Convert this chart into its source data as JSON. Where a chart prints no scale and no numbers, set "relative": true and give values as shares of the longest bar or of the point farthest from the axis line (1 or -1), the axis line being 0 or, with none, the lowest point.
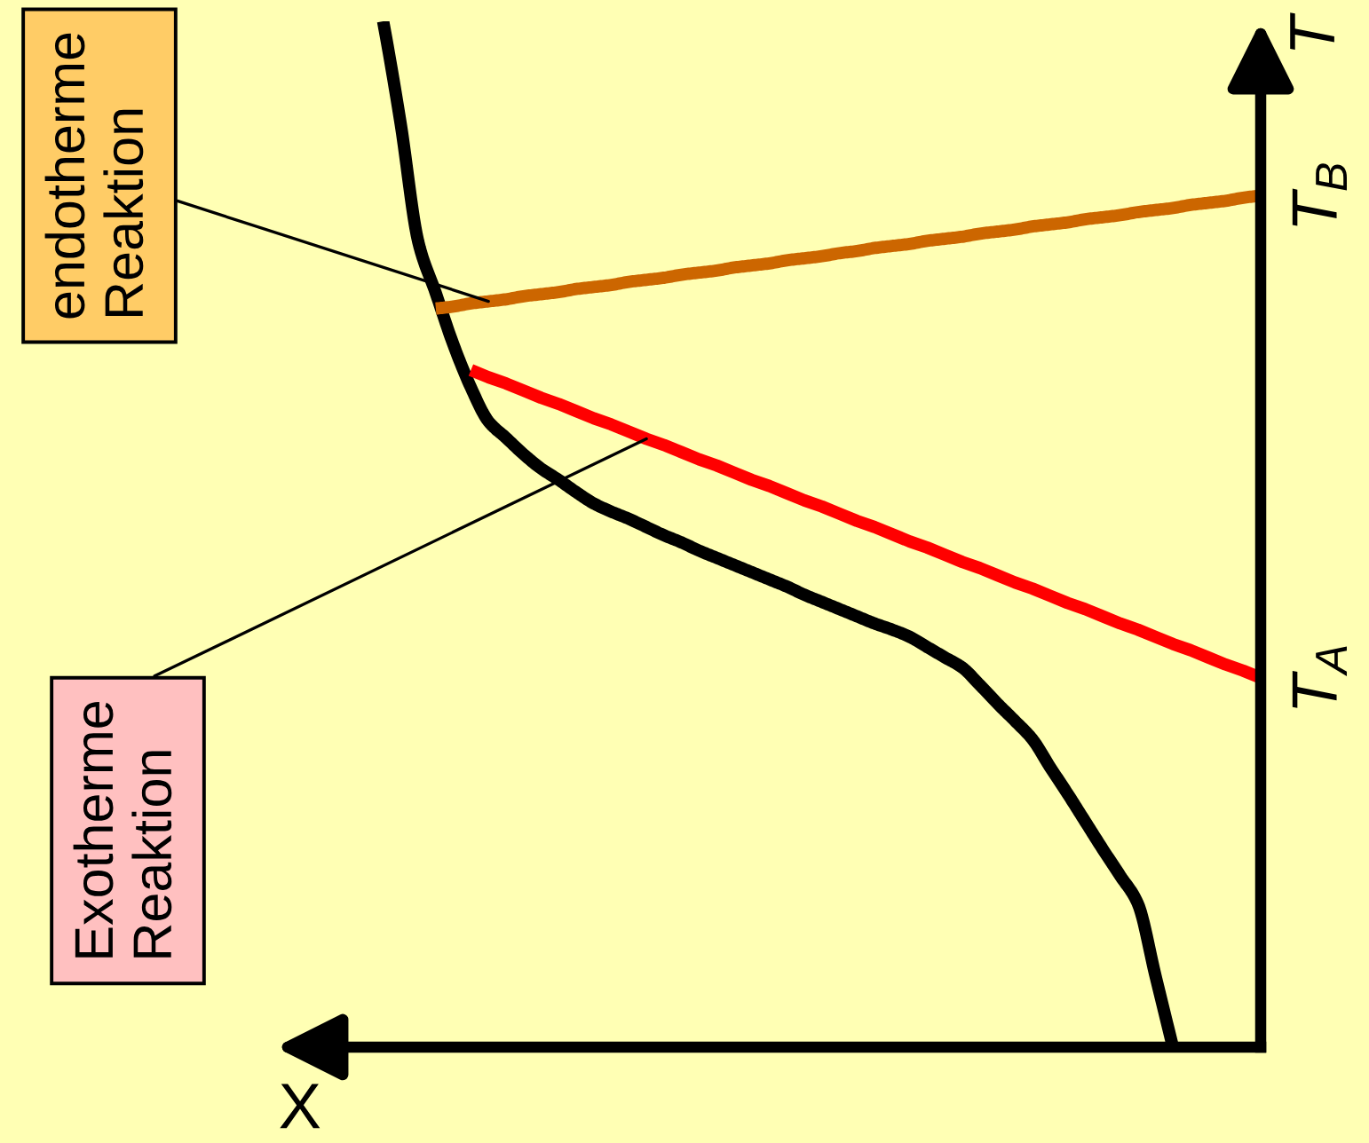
{
  "chart_data": {
    "type": "line",
    "relative": true,
    "xlabel": "X",
    "ylabel": "T",
    "categories": [
      null,
      null,
      null,
      null,
      null,
      null,
      null,
      null,
      null,
      null,
      null,
      null,
      null,
      null,
      null,
      null,
      null,
      null,
      null,
      null,
      null,
      null,
      null,
      null,
      null,
      null,
      null,
      null,
      null,
      null,
      null,
      null,
      null,
      null,
      null,
      null,
      null,
      null,
      null,
      null,
      null,
      null,
      null,
      null,
      null,
      null,
      null,
      null,
      null,
      null,
      null
    ],
    "series": [
      {
        "color": "#000000",
        "values": [
          1.0,
          0.9,
          0.785,
          0.735,
          0.685,
          0.643,
          0.61,
          0.594,
          0.578,
          0.564,
          0.553,
          0.541,
          0.53,
          0.522,
          0.515,
          0.507,
          0.499,
          0.492,
          0.484,
          0.477,
          0.47,
          0.463,
          0.456,
          0.449,
          0.441,
          0.434,
          0.427,
          0.42,
          0.413,
          0.407,
          0.4,
          0.39,
          0.38,
          0.37,
          0.353,
          0.335,
          0.318,
          0.3,
          0.273,
          0.247,
          0.22,
          0.193,
          0.167,
          0.14,
          0.07,
          0.0,
          null,
          null,
          null,
          null,
          null
        ]
      },
      {
        "color": "#ff0000",
        "values": [
          null,
          null,
          null,
          null,
          null,
          0.66,
          0.653,
          0.647,
          0.64,
          0.633,
          0.627,
          0.62,
          0.613,
          0.607,
          0.6,
          0.593,
          0.587,
          0.58,
          0.573,
          0.567,
          0.56,
          0.553,
          0.547,
          0.54,
          0.533,
          0.527,
          0.52,
          0.513,
          0.507,
          0.5,
          0.493,
          0.487,
          0.48,
          0.473,
          0.467,
          0.46,
          0.453,
          0.447,
          0.44,
          0.433,
          0.427,
          0.42,
          0.413,
          0.407,
          0.4,
          0.393,
          0.387,
          0.38,
          0.373,
          0.367,
          0.36
        ]
      },
      {
        "color": "#cc6600",
        "values": [
          null,
          null,
          null,
          0.72,
          0.722,
          0.725,
          0.727,
          0.729,
          0.732,
          0.734,
          0.736,
          0.739,
          0.741,
          0.743,
          0.746,
          0.748,
          0.75,
          0.753,
          0.755,
          0.757,
          0.76,
          0.762,
          0.764,
          0.767,
          0.769,
          0.771,
          0.774,
          0.776,
          0.779,
          0.781,
          0.783,
          0.786,
          0.788,
          0.79,
          0.793,
          0.795,
          0.797,
          0.8,
          0.802,
          0.804,
          0.807,
          0.809,
          0.811,
          0.814,
          0.816,
          0.818,
          0.821,
          0.823,
          0.825,
          0.828,
          0.83
        ]
      }
    ],
    "annotations": [
      "endotherme\nReaktion",
      "Exotherme\nReaktion",
      "T$_{B}$",
      "T$_{A}$"
    ]
  }
}
